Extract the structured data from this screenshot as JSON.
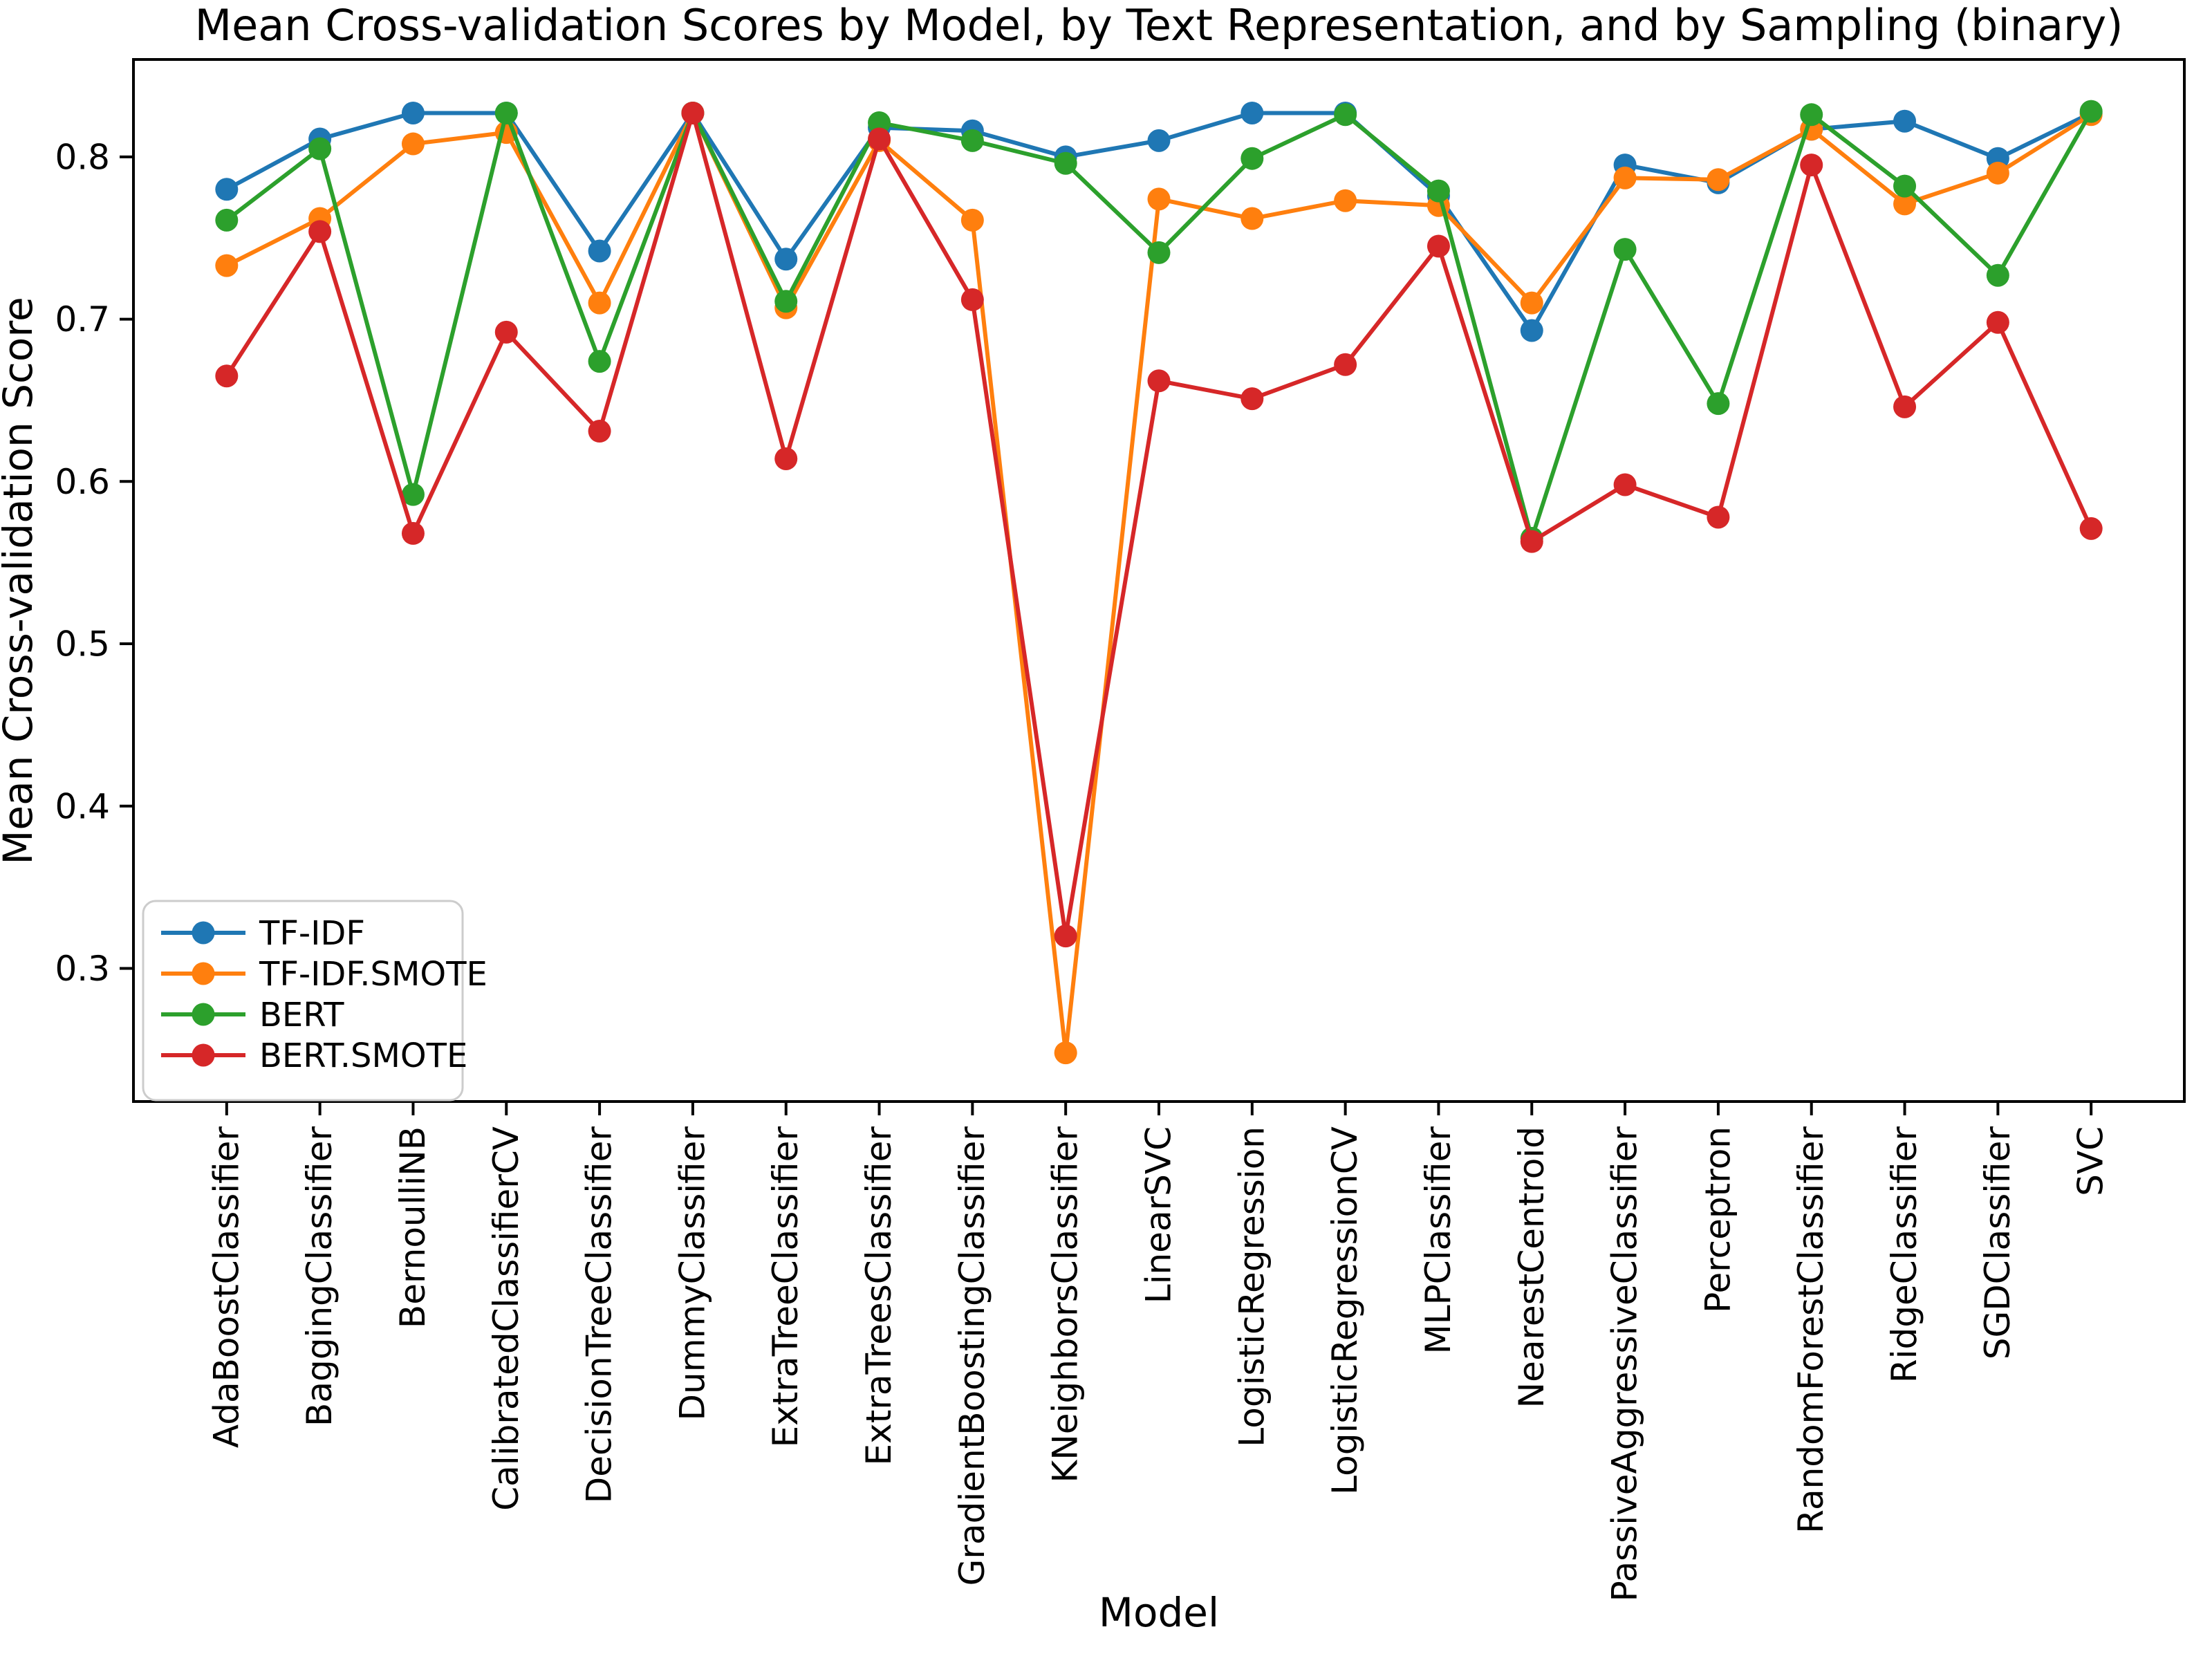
{
  "figure": {
    "title": "Mean Cross-validation Scores by Model, by Text Representation, and by Sampling (binary)",
    "xlabel": "Model",
    "ylabel": "Mean Cross-validation Score"
  },
  "chart_data": {
    "type": "line",
    "title": "Mean Cross-validation Scores by Model, by Text Representation, and by Sampling (binary)",
    "xlabel": "Model",
    "ylabel": "Mean Cross-validation Score",
    "grid": false,
    "legend_position": "lower-left",
    "ylim": [
      0.218,
      0.86
    ],
    "yticks": [
      0.3,
      0.4,
      0.5,
      0.6,
      0.7,
      0.8
    ],
    "categories": [
      "AdaBoostClassifier",
      "BaggingClassifier",
      "BernoulliNB",
      "CalibratedClassifierCV",
      "DecisionTreeClassifier",
      "DummyClassifier",
      "ExtraTreeClassifier",
      "ExtraTreesClassifier",
      "GradientBoostingClassifier",
      "KNeighborsClassifier",
      "LinearSVC",
      "LogisticRegression",
      "LogisticRegressionCV",
      "MLPClassifier",
      "NearestCentroid",
      "PassiveAggressiveClassifier",
      "Perceptron",
      "RandomForestClassifier",
      "RidgeClassifier",
      "SGDClassifier",
      "SVC"
    ],
    "series": [
      {
        "name": "TF-IDF",
        "color": "#1f77b4",
        "values": [
          0.78,
          0.811,
          0.827,
          0.827,
          0.742,
          0.827,
          0.737,
          0.818,
          0.816,
          0.8,
          0.81,
          0.827,
          0.827,
          0.776,
          0.693,
          0.795,
          0.784,
          0.817,
          0.822,
          0.799,
          0.827
        ]
      },
      {
        "name": "TF-IDF.SMOTE",
        "color": "#ff7f0e",
        "values": [
          0.733,
          0.762,
          0.808,
          0.815,
          0.71,
          0.827,
          0.707,
          0.81,
          0.761,
          0.248,
          0.774,
          0.762,
          0.773,
          0.77,
          0.71,
          0.787,
          0.786,
          0.817,
          0.771,
          0.79,
          0.826
        ]
      },
      {
        "name": "BERT",
        "color": "#2ca02c",
        "values": [
          0.761,
          0.805,
          0.592,
          0.827,
          0.674,
          0.827,
          0.711,
          0.821,
          0.81,
          0.796,
          0.741,
          0.799,
          0.826,
          0.779,
          0.565,
          0.743,
          0.648,
          0.826,
          0.782,
          0.727,
          0.828
        ]
      },
      {
        "name": "BERT.SMOTE",
        "color": "#d62728",
        "values": [
          0.665,
          0.754,
          0.568,
          0.692,
          0.631,
          0.827,
          0.614,
          0.811,
          0.712,
          0.32,
          0.662,
          0.651,
          0.672,
          0.745,
          0.563,
          0.598,
          0.578,
          0.795,
          0.646,
          0.698,
          0.571
        ]
      }
    ]
  }
}
